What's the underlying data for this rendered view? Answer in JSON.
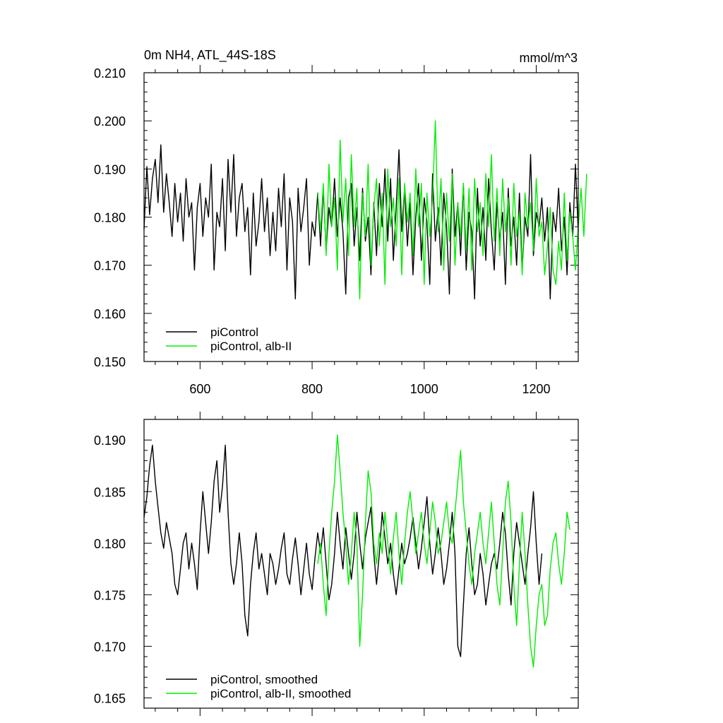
{
  "chart_data": [
    {
      "type": "line",
      "title_left": "0m NH4, ATL_44S-18S",
      "title_right": "mmol/m^3",
      "xlabel": "",
      "ylabel": "",
      "xlim": [
        500,
        1275
      ],
      "ylim": [
        0.15,
        0.21
      ],
      "x_ticks": [
        600,
        800,
        1000,
        1200
      ],
      "x_tick_labels": [
        "600",
        "800",
        "1000",
        "1200"
      ],
      "y_ticks": [
        0.15,
        0.16,
        0.17,
        0.18,
        0.19,
        0.2,
        0.21
      ],
      "y_tick_labels": [
        "0.150",
        "0.160",
        "0.170",
        "0.180",
        "0.190",
        "0.200",
        "0.210"
      ],
      "legend_position": "bottom-left",
      "series": [
        {
          "name": "piControl",
          "color": "#000000",
          "x_start": 500,
          "x_step": 5,
          "values": [
            0.1775,
            0.1905,
            0.1805,
            0.188,
            0.192,
            0.183,
            0.195,
            0.181,
            0.189,
            0.183,
            0.176,
            0.187,
            0.179,
            0.185,
            0.175,
            0.188,
            0.18,
            0.183,
            0.169,
            0.182,
            0.187,
            0.176,
            0.184,
            0.18,
            0.191,
            0.169,
            0.181,
            0.178,
            0.188,
            0.173,
            0.192,
            0.181,
            0.193,
            0.176,
            0.184,
            0.187,
            0.177,
            0.182,
            0.168,
            0.185,
            0.174,
            0.179,
            0.188,
            0.177,
            0.184,
            0.172,
            0.181,
            0.173,
            0.186,
            0.178,
            0.189,
            0.169,
            0.184,
            0.179,
            0.163,
            0.186,
            0.177,
            0.182,
            0.188,
            0.17,
            0.179,
            0.176,
            0.185,
            0.174,
            0.186,
            0.173,
            0.182,
            0.178,
            0.188,
            0.176,
            0.184,
            0.177,
            0.164,
            0.184,
            0.187,
            0.174,
            0.182,
            0.171,
            0.186,
            0.175,
            0.18,
            0.168,
            0.183,
            0.172,
            0.187,
            0.178,
            0.19,
            0.175,
            0.188,
            0.171,
            0.182,
            0.194,
            0.177,
            0.186,
            0.174,
            0.183,
            0.168,
            0.18,
            0.187,
            0.171,
            0.184,
            0.179,
            0.166,
            0.189,
            0.175,
            0.182,
            0.17,
            0.185,
            0.178,
            0.164,
            0.19,
            0.176,
            0.183,
            0.172,
            0.187,
            0.169,
            0.181,
            0.177,
            0.163,
            0.186,
            0.174,
            0.182,
            0.171,
            0.188,
            0.177,
            0.169,
            0.183,
            0.175,
            0.181,
            0.166,
            0.186,
            0.174,
            0.18,
            0.17,
            0.185,
            0.169,
            0.18,
            0.176,
            0.193,
            0.172,
            0.181,
            0.178,
            0.184,
            0.175,
            0.182,
            0.163,
            0.181,
            0.177,
            0.186,
            0.173,
            0.18,
            0.168,
            0.183,
            0.176,
            0.191,
            0.177
          ]
        },
        {
          "name": "piControl, alb-II",
          "color": "#00ee00",
          "x_start": 810,
          "x_step": 5,
          "values": [
            0.185,
            0.177,
            0.187,
            0.172,
            0.191,
            0.178,
            0.184,
            0.169,
            0.196,
            0.179,
            0.188,
            0.172,
            0.193,
            0.178,
            0.186,
            0.163,
            0.185,
            0.176,
            0.191,
            0.17,
            0.182,
            0.188,
            0.174,
            0.185,
            0.166,
            0.19,
            0.178,
            0.184,
            0.174,
            0.188,
            0.168,
            0.187,
            0.179,
            0.185,
            0.172,
            0.19,
            0.178,
            0.187,
            0.166,
            0.185,
            0.176,
            0.184,
            0.2,
            0.177,
            0.188,
            0.169,
            0.185,
            0.175,
            0.189,
            0.17,
            0.183,
            0.176,
            0.187,
            0.173,
            0.186,
            0.169,
            0.188,
            0.177,
            0.183,
            0.172,
            0.189,
            0.178,
            0.193,
            0.175,
            0.186,
            0.172,
            0.188,
            0.177,
            0.184,
            0.17,
            0.187,
            0.176,
            0.181,
            0.168,
            0.185,
            0.178,
            0.183,
            0.173,
            0.188,
            0.176,
            0.179,
            0.168,
            0.174,
            0.182,
            0.169,
            0.166,
            0.175,
            0.169,
            0.185,
            0.171,
            0.181,
            0.176,
            0.169,
            0.178,
            0.186,
            0.176,
            0.189
          ]
        }
      ]
    },
    {
      "type": "line",
      "title_left": "",
      "title_right": "",
      "xlabel": "",
      "ylabel": "",
      "xlim": [
        500,
        1275
      ],
      "ylim": [
        0.164,
        0.192
      ],
      "x_ticks": [
        600,
        800,
        1000,
        1200
      ],
      "x_tick_labels": [
        "",
        "",
        "",
        ""
      ],
      "y_ticks": [
        0.165,
        0.17,
        0.175,
        0.18,
        0.185,
        0.19
      ],
      "y_tick_labels": [
        "0.165",
        "0.170",
        "0.175",
        "0.180",
        "0.185",
        "0.190"
      ],
      "legend_position": "bottom-left",
      "series": [
        {
          "name": "piControl, smoothed",
          "color": "#000000",
          "x_start": 500,
          "x_step": 5,
          "values": [
            0.1825,
            0.1845,
            0.1875,
            0.1895,
            0.186,
            0.1835,
            0.181,
            0.1795,
            0.182,
            0.1805,
            0.179,
            0.176,
            0.175,
            0.1775,
            0.18,
            0.181,
            0.1775,
            0.18,
            0.178,
            0.1755,
            0.181,
            0.185,
            0.182,
            0.179,
            0.182,
            0.186,
            0.188,
            0.183,
            0.1855,
            0.1895,
            0.183,
            0.178,
            0.176,
            0.178,
            0.181,
            0.178,
            0.173,
            0.171,
            0.176,
            0.179,
            0.181,
            0.1775,
            0.179,
            0.177,
            0.175,
            0.179,
            0.178,
            0.176,
            0.1775,
            0.1795,
            0.181,
            0.177,
            0.176,
            0.1785,
            0.1805,
            0.178,
            0.175,
            0.1775,
            0.18,
            0.177,
            0.1755,
            0.1785,
            0.181,
            0.179,
            0.1815,
            0.178,
            0.1745,
            0.176,
            0.179,
            0.183,
            0.18,
            0.1775,
            0.1815,
            0.179,
            0.1765,
            0.179,
            0.183,
            0.18,
            0.1775,
            0.1805,
            0.182,
            0.1835,
            0.179,
            0.176,
            0.179,
            0.183,
            0.1805,
            0.178,
            0.18,
            0.177,
            0.175,
            0.1775,
            0.18,
            0.178,
            0.179,
            0.1805,
            0.1825,
            0.18,
            0.1775,
            0.1795,
            0.182,
            0.1845,
            0.18,
            0.177,
            0.179,
            0.1815,
            0.179,
            0.176,
            0.1775,
            0.18,
            0.183,
            0.179,
            0.17,
            0.169,
            0.174,
            0.179,
            0.1815,
            0.178,
            0.175,
            0.176,
            0.179,
            0.177,
            0.174,
            0.176,
            0.178,
            0.179,
            0.1775,
            0.18,
            0.183,
            0.181,
            0.177,
            0.174,
            0.179,
            0.182,
            0.18,
            0.178,
            0.176,
            0.179,
            0.1815,
            0.185,
            0.18,
            0.176,
            0.179
          ]
        },
        {
          "name": "piControl, alb-II, smoothed",
          "color": "#00ee00",
          "x_start": 810,
          "x_step": 5,
          "values": [
            0.178,
            0.18,
            0.176,
            0.173,
            0.179,
            0.183,
            0.186,
            0.1905,
            0.187,
            0.183,
            0.18,
            0.176,
            0.179,
            0.183,
            0.18,
            0.17,
            0.175,
            0.182,
            0.187,
            0.185,
            0.18,
            0.178,
            0.181,
            0.179,
            0.183,
            0.18,
            0.177,
            0.1805,
            0.183,
            0.179,
            0.176,
            0.18,
            0.183,
            0.185,
            0.182,
            0.179,
            0.181,
            0.183,
            0.18,
            0.178,
            0.181,
            0.184,
            0.182,
            0.179,
            0.18,
            0.182,
            0.184,
            0.181,
            0.18,
            0.183,
            0.186,
            0.189,
            0.184,
            0.181,
            0.178,
            0.176,
            0.179,
            0.181,
            0.183,
            0.18,
            0.178,
            0.181,
            0.184,
            0.18,
            0.176,
            0.174,
            0.179,
            0.184,
            0.186,
            0.182,
            0.176,
            0.172,
            0.178,
            0.183,
            0.179,
            0.174,
            0.17,
            0.168,
            0.172,
            0.175,
            0.176,
            0.172,
            0.173,
            0.1775,
            0.18,
            0.181,
            0.178,
            0.176,
            0.179,
            0.183,
            0.1813
          ]
        }
      ]
    }
  ]
}
